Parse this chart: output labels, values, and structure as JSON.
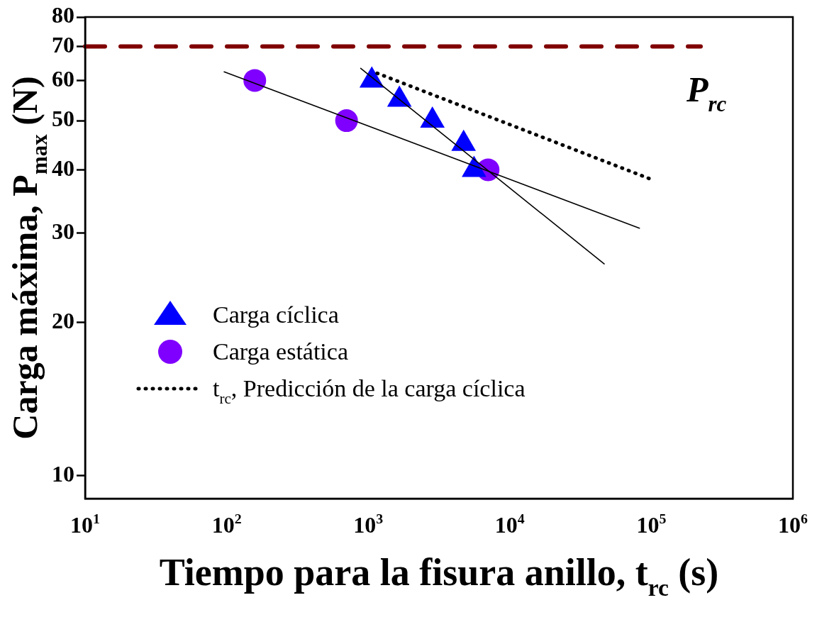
{
  "chart_data": {
    "type": "scatter",
    "xlabel": "Tiempo para la fisura anillo, t$_{rc}$ (s)",
    "ylabel": "Carga máxima, P$_{max}$ (N)",
    "log": "xy",
    "xlim": [
      10,
      1000000
    ],
    "ylim": [
      9,
      80
    ],
    "xticks": [
      {
        "value": 10,
        "label": "10$^{1}$"
      },
      {
        "value": 100,
        "label": "10$^{2}$"
      },
      {
        "value": 1000,
        "label": "10$^{3}$"
      },
      {
        "value": 10000,
        "label": "10$^{4}$"
      },
      {
        "value": 100000,
        "label": "10$^{5}$"
      },
      {
        "value": 1000000,
        "label": "10$^{6}$"
      }
    ],
    "yticks": [
      10,
      20,
      30,
      40,
      50,
      60,
      70,
      80
    ],
    "grid": false,
    "legend": "bottom left",
    "series": [
      {
        "name": "Carga cíclica",
        "marker": "triangle",
        "color": "#0000ff",
        "x": [
          1060,
          1660,
          2840,
          4720,
          5590
        ],
        "values": [
          60,
          55,
          50,
          45,
          40
        ]
      },
      {
        "name": "Carga estática",
        "marker": "circle",
        "color": "#8000ff",
        "x": [
          158,
          703,
          7030
        ],
        "values": [
          60,
          50,
          40
        ]
      },
      {
        "name": "t$_{rc}$, Predicción de la carga cíclica",
        "type": "line",
        "marker": "none",
        "line_style": "dotted",
        "color": "#000000",
        "x": [
          1156,
          100000
        ],
        "values": [
          62,
          38.3
        ]
      },
      {
        "type": "line",
        "marker": "none",
        "line_style": "solid",
        "color": "#000000",
        "x": [
          96,
          82400
        ],
        "values": [
          62.4,
          30.7
        ]
      },
      {
        "type": "line",
        "marker": "none",
        "line_style": "solid",
        "color": "#000000",
        "x": [
          885,
          46500
        ],
        "values": [
          63.4,
          26.1
        ]
      }
    ],
    "ref_lines": [
      {
        "axis": "y",
        "value": 70,
        "label": "P$_{rc}$",
        "color": "#800000",
        "line_style": "dashed"
      }
    ]
  }
}
